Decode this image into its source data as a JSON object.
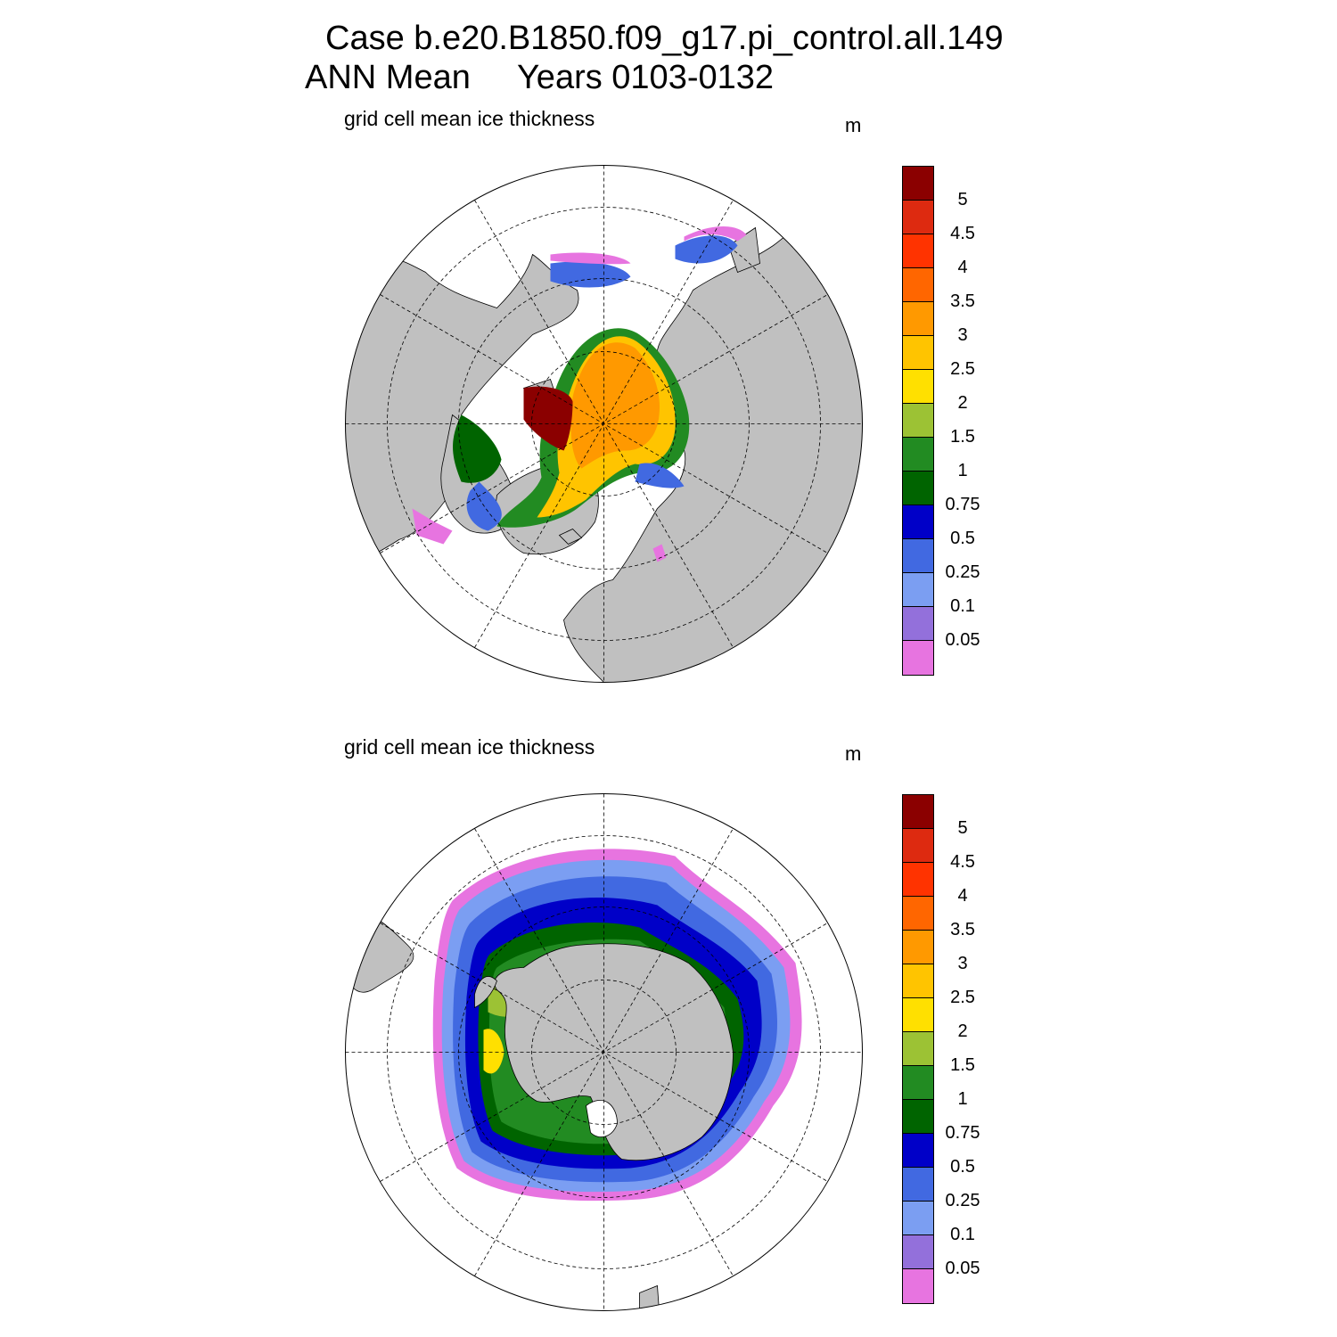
{
  "title": {
    "line1": "Case b.e20.B1850.f09_g17.pi_control.all.149",
    "line2_left": "ANN Mean",
    "line2_right": "Years 0103-0132"
  },
  "colorbar": {
    "levels": [
      "5",
      "4.5",
      "4",
      "3.5",
      "3",
      "2.5",
      "2",
      "1.5",
      "1",
      "0.75",
      "0.5",
      "0.25",
      "0.1",
      "0.05"
    ],
    "colors": [
      "#8b0000",
      "#dd2a10",
      "#ff3300",
      "#ff6600",
      "#ff9900",
      "#ffc400",
      "#ffe000",
      "#9cc234",
      "#228b22",
      "#006400",
      "#0000c8",
      "#4169e1",
      "#7b9ef2",
      "#9370db",
      "#e774e0"
    ]
  },
  "colors": {
    "land": "#c0c0c0",
    "ocean": "#ffffff",
    "grid": "#000000"
  },
  "panels": [
    {
      "id": "north",
      "hemisphere": "Northern",
      "subtitle": "grid cell mean ice thickness",
      "units": "m",
      "lat_circles": [
        40,
        60,
        80
      ],
      "lon_spokes_deg": 30
    },
    {
      "id": "south",
      "hemisphere": "Southern",
      "subtitle": "grid cell mean ice thickness",
      "units": "m",
      "lat_circles": [
        -40,
        -60,
        -80
      ],
      "lon_spokes_deg": 30
    }
  ]
}
